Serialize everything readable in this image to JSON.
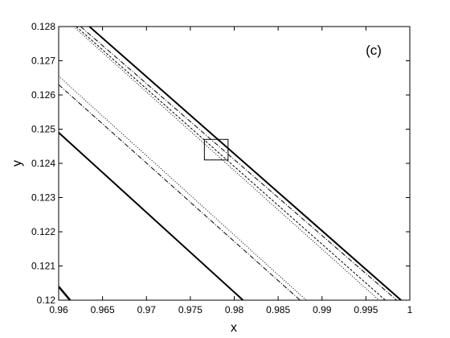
{
  "chart_data": {
    "type": "line",
    "xlabel": "x",
    "ylabel": "y",
    "annotation": "(c)",
    "xlim": [
      0.96,
      1
    ],
    "ylim": [
      0.12,
      0.128
    ],
    "xticks": [
      0.96,
      0.965,
      0.97,
      0.975,
      0.98,
      0.985,
      0.99,
      0.995,
      1
    ],
    "yticks": [
      0.12,
      0.121,
      0.122,
      0.123,
      0.124,
      0.125,
      0.126,
      0.127,
      0.128
    ],
    "grid": false,
    "series": [
      {
        "color": "#000000",
        "dash": "none",
        "width": 2.5,
        "x": [
          0.96,
          0.9613
        ],
        "values": [
          0.1204,
          0.12
        ]
      },
      {
        "color": "#000000",
        "dash": "none",
        "width": 2,
        "x": [
          0.96,
          0.981
        ],
        "values": [
          0.1249,
          0.12
        ]
      },
      {
        "color": "#000000",
        "dash": "6 2 1 2",
        "width": 1,
        "x": [
          0.96,
          0.9875
        ],
        "values": [
          0.1263,
          0.12
        ]
      },
      {
        "color": "#000000",
        "dash": "1 2",
        "width": 1,
        "x": [
          0.96,
          0.9882
        ],
        "values": [
          0.12655,
          0.12
        ]
      },
      {
        "color": "#000000",
        "dash": "none",
        "width": 2,
        "x": [
          0.9635,
          0.999
        ],
        "values": [
          0.128,
          0.12
        ]
      },
      {
        "color": "#000000",
        "dash": "6 2 1 2",
        "width": 1,
        "x": [
          0.9625,
          0.9985
        ],
        "values": [
          0.128,
          0.12
        ]
      },
      {
        "color": "#000000",
        "dash": "3 2",
        "width": 1,
        "x": [
          0.962,
          0.9972
        ],
        "values": [
          0.128,
          0.12
        ]
      },
      {
        "color": "#000000",
        "dash": "1 2",
        "width": 1,
        "x": [
          0.9617,
          0.9965
        ],
        "values": [
          0.128,
          0.12
        ]
      }
    ],
    "inset_box": {
      "x": [
        0.9766,
        0.9793
      ],
      "y": [
        0.1241,
        0.1247
      ]
    }
  }
}
